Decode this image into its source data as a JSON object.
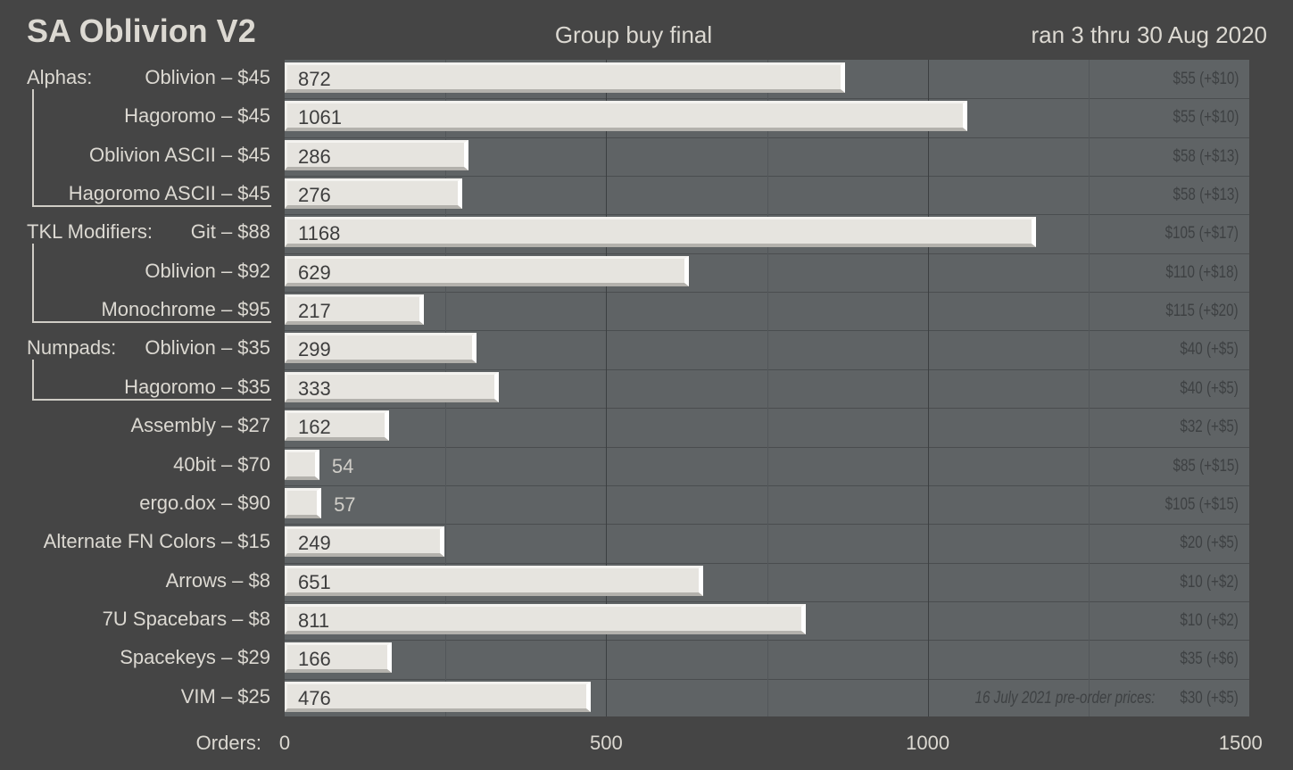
{
  "chart_data": {
    "type": "bar",
    "orientation": "horizontal",
    "title": "SA Oblivion V2",
    "subtitle": "Group buy final",
    "period": "ran 3 thru 30 Aug 2020",
    "xlabel": "Orders:",
    "xlim": [
      0,
      1500
    ],
    "xticks": [
      0,
      500,
      1000,
      1500
    ],
    "grid": true,
    "groups": [
      {
        "label": "Alphas:",
        "start": 0,
        "end": 3
      },
      {
        "label": "TKL Modifiers:",
        "start": 4,
        "end": 6
      },
      {
        "label": "Numpads:",
        "start": 7,
        "end": 8
      }
    ],
    "categories": [
      "Oblivion – $45",
      "Hagoromo – $45",
      "Oblivion ASCII – $45",
      "Hagoromo ASCII – $45",
      "Git – $88",
      "Oblivion – $92",
      "Monochrome – $95",
      "Oblivion – $35",
      "Hagoromo – $35",
      "Assembly – $27",
      "40bit – $70",
      "ergo.dox – $90",
      "Alternate FN Colors – $15",
      "Arrows – $8",
      "7U Spacebars – $8",
      "Spacekeys – $29",
      "VIM – $25"
    ],
    "values": [
      872,
      1061,
      286,
      276,
      1168,
      629,
      217,
      299,
      333,
      162,
      54,
      57,
      249,
      651,
      811,
      166,
      476
    ],
    "preorder_note": "16 July 2021  pre-order prices:",
    "preorder_prices": [
      "$55 (+$10)",
      "$55 (+$10)",
      "$58 (+$13)",
      "$58 (+$13)",
      "$105 (+$17)",
      "$110 (+$18)",
      "$115 (+$20)",
      "$40 (+$5)",
      "$40 (+$5)",
      "$32 (+$5)",
      "$85 (+$15)",
      "$105 (+$15)",
      "$20 (+$5)",
      "$10 (+$2)",
      "$10 (+$2)",
      "$35 (+$6)",
      "$30 (+$5)"
    ]
  }
}
